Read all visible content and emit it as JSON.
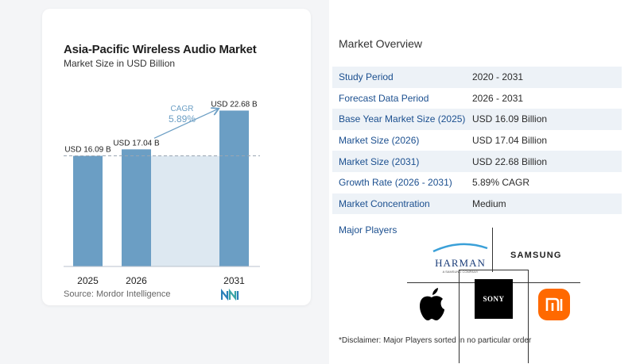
{
  "chart": {
    "title": "Asia-Pacific Wireless Audio Market",
    "subtitle": "Market Size in USD Billion",
    "source": "Source:  Mordor Intelligence",
    "cagr_label": "CAGR",
    "cagr_value": "5.89%"
  },
  "chart_data": {
    "type": "bar",
    "title": "Asia-Pacific Wireless Audio Market",
    "subtitle": "Market Size in USD Billion",
    "categories": [
      "2025",
      "2026",
      "2031"
    ],
    "values": [
      16.09,
      17.04,
      22.68
    ],
    "data_labels": [
      "USD 16.09 B",
      "USD 17.04 B",
      "USD 22.68 B"
    ],
    "ylim": [
      0,
      24
    ],
    "grid": false,
    "annotation": {
      "text": "CAGR 5.89%",
      "from": "2026",
      "to": "2031"
    },
    "colors": {
      "bar": "#6b9ec4",
      "band": "#dde8f1",
      "reference_line": "#9aa6b2"
    }
  },
  "overview": {
    "title": "Market Overview",
    "rows": [
      {
        "label": "Study Period",
        "value": "2020 - 2031"
      },
      {
        "label": "Forecast Data Period",
        "value": "2026 - 2031"
      },
      {
        "label": "Base Year Market Size (2025)",
        "value": "USD 16.09 Billion"
      },
      {
        "label": "Market Size (2026)",
        "value": "USD 17.04 Billion"
      },
      {
        "label": "Market Size (2031)",
        "value": "USD 22.68 Billion"
      },
      {
        "label": "Growth Rate (2026 - 2031)",
        "value": "5.89% CAGR"
      },
      {
        "label": "Market Concentration",
        "value": "Medium"
      }
    ]
  },
  "players": {
    "title": "Major Players",
    "harman": "HARMAN",
    "harman_sub": "A SAMSUNG COMPANY",
    "samsung": "SAMSUNG",
    "sony": "SONY",
    "icons": [
      "apple-logo-icon",
      "xiaomi-logo-icon"
    ]
  },
  "disclaimer": "*Disclaimer: Major Players sorted in no particular order"
}
